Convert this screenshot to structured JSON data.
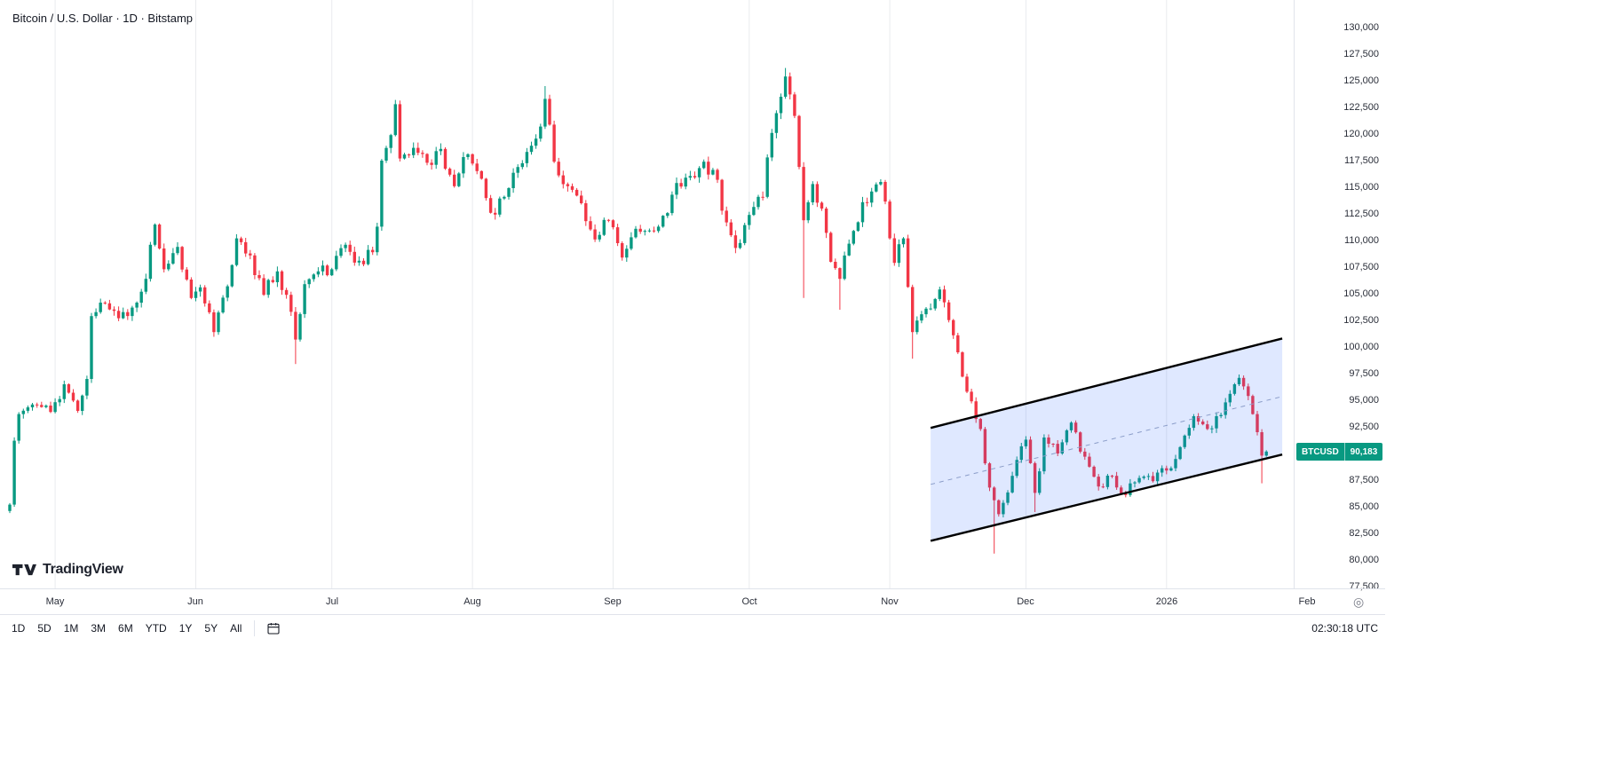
{
  "header": {
    "title": "Bitcoin / U.S. Dollar · 1D · Bitstamp"
  },
  "watermark": {
    "logo_text": "TradingView"
  },
  "price_label": {
    "symbol": "BTCUSD",
    "price": "90,183",
    "color": "#089981"
  },
  "toolbar": {
    "ranges": [
      "1D",
      "5D",
      "1M",
      "3M",
      "6M",
      "YTD",
      "1Y",
      "5Y",
      "All"
    ],
    "clock": "02:30:18 UTC"
  },
  "axes": {
    "y_min": 77500,
    "y_max": 130000,
    "y_step": 2500,
    "grid_color": "#e9ebee",
    "x_labels": [
      {
        "label": "May",
        "day": 10
      },
      {
        "label": "Jun",
        "day": 41
      },
      {
        "label": "Jul",
        "day": 71
      },
      {
        "label": "Aug",
        "day": 102
      },
      {
        "label": "Sep",
        "day": 133
      },
      {
        "label": "Oct",
        "day": 163
      },
      {
        "label": "Nov",
        "day": 194
      },
      {
        "label": "Dec",
        "day": 224
      },
      {
        "label": "2026",
        "day": 255
      },
      {
        "label": "Feb",
        "day": 286
      }
    ]
  },
  "chart_data": {
    "type": "candlestick",
    "title": "Bitcoin / U.S. Dollar",
    "ticker": "BTCUSD",
    "interval": "1D",
    "exchange": "Bitstamp",
    "last_price": 90183,
    "up_color": "#089981",
    "down_color": "#f23645",
    "ylim": [
      77500,
      130000
    ],
    "noise_seed": 11,
    "noise_pct": 0.013,
    "trend_points": [
      [
        0,
        85200
      ],
      [
        1,
        91200
      ],
      [
        2,
        93700
      ],
      [
        5,
        94600
      ],
      [
        9,
        93900
      ],
      [
        12,
        96500
      ],
      [
        15,
        94000
      ],
      [
        17,
        97000
      ],
      [
        18,
        102900
      ],
      [
        21,
        104100
      ],
      [
        24,
        102700
      ],
      [
        27,
        103700
      ],
      [
        30,
        106400
      ],
      [
        31,
        109600
      ],
      [
        32,
        111500
      ],
      [
        34,
        107300
      ],
      [
        37,
        109400
      ],
      [
        40,
        104600
      ],
      [
        42,
        105600
      ],
      [
        45,
        101400
      ],
      [
        48,
        105700
      ],
      [
        50,
        110200
      ],
      [
        53,
        108600
      ],
      [
        56,
        104900
      ],
      [
        59,
        107100
      ],
      [
        62,
        103300
      ],
      [
        63,
        100700
      ],
      [
        65,
        105900
      ],
      [
        68,
        107100
      ],
      [
        71,
        107300
      ],
      [
        74,
        109600
      ],
      [
        77,
        108100
      ],
      [
        80,
        108900
      ],
      [
        81,
        111300
      ],
      [
        82,
        117500
      ],
      [
        84,
        119900
      ],
      [
        85,
        122800
      ],
      [
        86,
        117700
      ],
      [
        89,
        118700
      ],
      [
        92,
        117300
      ],
      [
        95,
        118600
      ],
      [
        98,
        115100
      ],
      [
        101,
        118100
      ],
      [
        104,
        115800
      ],
      [
        106,
        112600
      ],
      [
        109,
        114100
      ],
      [
        112,
        116900
      ],
      [
        115,
        118900
      ],
      [
        117,
        120700
      ],
      [
        118,
        123300
      ],
      [
        120,
        117400
      ],
      [
        123,
        115100
      ],
      [
        126,
        113500
      ],
      [
        129,
        110100
      ],
      [
        132,
        111900
      ],
      [
        135,
        108400
      ],
      [
        137,
        110300
      ],
      [
        140,
        110900
      ],
      [
        143,
        111300
      ],
      [
        146,
        114300
      ],
      [
        149,
        115900
      ],
      [
        152,
        116800
      ],
      [
        153,
        117400
      ],
      [
        156,
        115700
      ],
      [
        157,
        112800
      ],
      [
        160,
        109300
      ],
      [
        163,
        112400
      ],
      [
        166,
        114100
      ],
      [
        168,
        120100
      ],
      [
        170,
        123500
      ],
      [
        171,
        125400
      ],
      [
        173,
        121700
      ],
      [
        175,
        111900
      ],
      [
        177,
        115300
      ],
      [
        179,
        113000
      ],
      [
        181,
        108000
      ],
      [
        183,
        106400
      ],
      [
        186,
        110900
      ],
      [
        188,
        113600
      ],
      [
        190,
        114600
      ],
      [
        192,
        115500
      ],
      [
        195,
        107900
      ],
      [
        197,
        110200
      ],
      [
        199,
        101400
      ],
      [
        202,
        103600
      ],
      [
        205,
        105400
      ],
      [
        208,
        101100
      ],
      [
        211,
        95800
      ],
      [
        214,
        92300
      ],
      [
        216,
        86800
      ],
      [
        218,
        84300
      ],
      [
        221,
        87900
      ],
      [
        224,
        91300
      ],
      [
        226,
        86300
      ],
      [
        228,
        91500
      ],
      [
        231,
        90000
      ],
      [
        234,
        92900
      ],
      [
        237,
        89700
      ],
      [
        240,
        86900
      ],
      [
        243,
        87900
      ],
      [
        246,
        86100
      ],
      [
        249,
        87700
      ],
      [
        252,
        87400
      ],
      [
        255,
        88400
      ],
      [
        258,
        90600
      ],
      [
        261,
        93500
      ],
      [
        264,
        92300
      ],
      [
        266,
        93500
      ],
      [
        268,
        94800
      ],
      [
        270,
        96500
      ],
      [
        271,
        97100
      ],
      [
        272,
        96300
      ],
      [
        273,
        95400
      ],
      [
        274,
        93700
      ],
      [
        275,
        92000
      ],
      [
        276,
        89800
      ],
      [
        277,
        90183
      ]
    ],
    "wick_overrides": [
      {
        "d": 63,
        "low": 98400
      },
      {
        "d": 85,
        "high": 123200
      },
      {
        "d": 118,
        "high": 124500
      },
      {
        "d": 171,
        "high": 126200
      },
      {
        "d": 175,
        "low": 104600
      },
      {
        "d": 183,
        "low": 103500
      },
      {
        "d": 199,
        "low": 98900
      },
      {
        "d": 217,
        "low": 80600
      },
      {
        "d": 226,
        "low": 84500
      },
      {
        "d": 276,
        "low": 87200
      }
    ],
    "channel": {
      "d1": 203,
      "d2": 280.5,
      "upper1": 92400,
      "upper2": 100800,
      "lower1": 81800,
      "lower2": 89900,
      "fill": "rgba(41,98,255,0.15)",
      "line_color": "#000000",
      "mid_color": "#8b9dc9"
    }
  }
}
